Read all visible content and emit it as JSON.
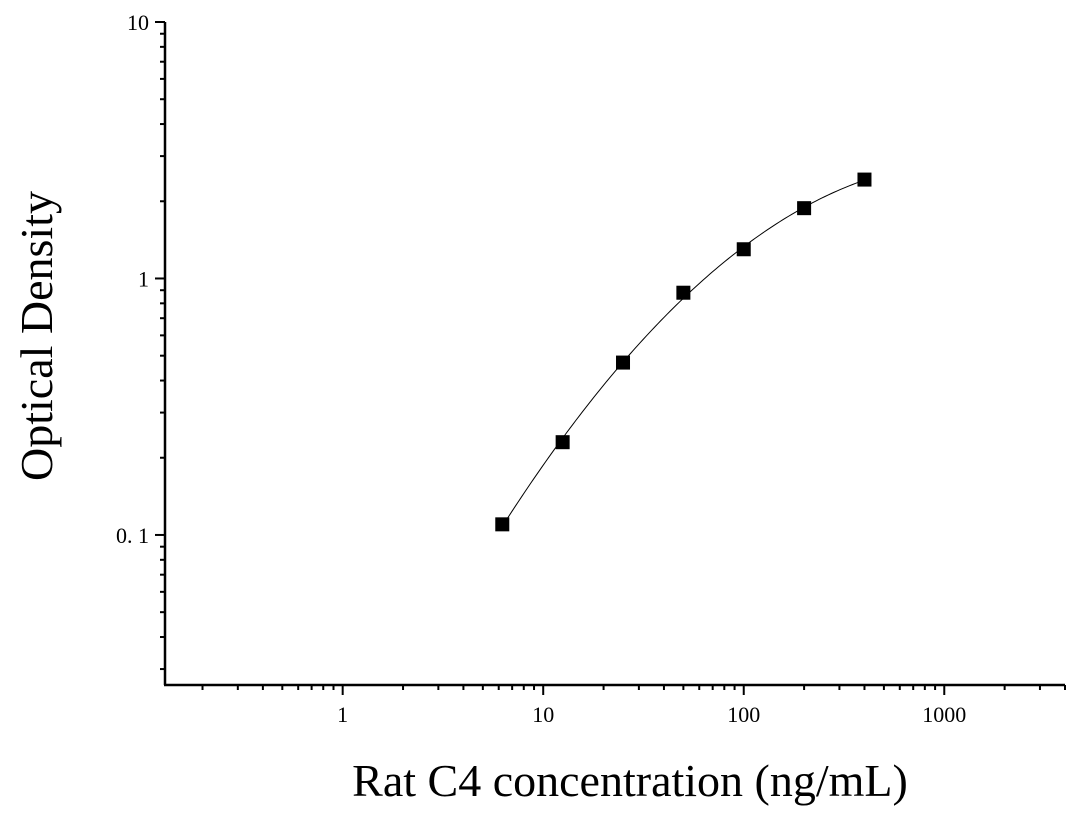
{
  "chart_data": {
    "type": "scatter",
    "title": "",
    "xlabel": "Rat C4 concentration (ng/mL)",
    "ylabel": "Optical Density",
    "x_scale": "log",
    "y_scale": "log",
    "xlim": [
      0.13,
      4000
    ],
    "ylim": [
      0.026,
      10
    ],
    "x_tick_labels": [
      {
        "value": 1,
        "label": "1"
      },
      {
        "value": 10,
        "label": "10"
      },
      {
        "value": 100,
        "label": "100"
      },
      {
        "value": 1000,
        "label": "1000"
      }
    ],
    "y_tick_labels": [
      {
        "value": 0.1,
        "label": "0. 1"
      },
      {
        "value": 1,
        "label": "1"
      },
      {
        "value": 10,
        "label": "10"
      }
    ],
    "grid": false,
    "legend": "none",
    "series": [
      {
        "x": [
          6.25,
          12.5,
          25,
          50,
          100,
          200,
          400
        ],
        "y": [
          0.11,
          0.23,
          0.47,
          0.88,
          1.3,
          1.88,
          2.43
        ],
        "marker": "square",
        "color": "#000000"
      }
    ],
    "fit_curve": {
      "x_range": [
        6.1,
        400
      ],
      "color": "#000000"
    }
  }
}
